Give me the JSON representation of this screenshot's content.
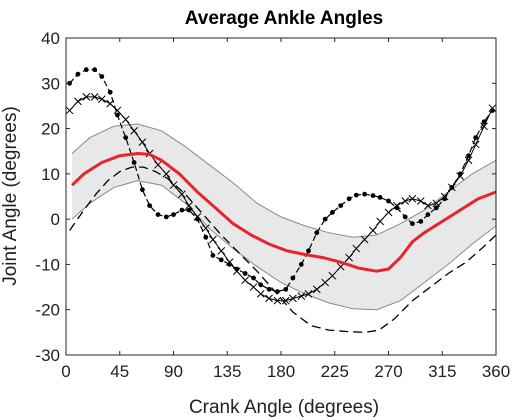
{
  "chart_data": {
    "type": "line",
    "title": "Average Ankle Angles",
    "xlabel": "Crank Angle (degrees)",
    "ylabel": "Joint Angle (degrees)",
    "xlim": [
      0,
      360
    ],
    "ylim": [
      -30,
      40
    ],
    "xticks": [
      "0",
      "45",
      "90",
      "135",
      "180",
      "225",
      "270",
      "315",
      "360"
    ],
    "yticks": [
      "40",
      "30",
      "20",
      "10",
      "0",
      "-10",
      "-20",
      "-30"
    ],
    "grid": false,
    "legend": "none",
    "band": {
      "x": [
        5,
        20,
        40,
        60,
        80,
        100,
        120,
        140,
        160,
        180,
        200,
        220,
        240,
        260,
        280,
        300,
        320,
        340,
        360
      ],
      "upper": [
        14.5,
        18,
        20.5,
        21,
        19.5,
        16,
        12,
        8,
        3.5,
        0.5,
        -1.5,
        -3,
        -4,
        -3.5,
        -1,
        2,
        6,
        10,
        13
      ],
      "lower": [
        0,
        3.5,
        7,
        8.5,
        7.5,
        3.5,
        -2,
        -6.5,
        -10.5,
        -14,
        -16.5,
        -18.5,
        -19.8,
        -20,
        -18,
        -14,
        -10,
        -5.5,
        -1.5
      ]
    },
    "series": [
      {
        "color": "#e8242c",
        "style": "thick-solid",
        "x": [
          5,
          15,
          30,
          45,
          60,
          70,
          80,
          95,
          110,
          125,
          140,
          155,
          170,
          185,
          200,
          215,
          230,
          245,
          260,
          270,
          280,
          290,
          300,
          315,
          330,
          345,
          360
        ],
        "y": [
          7.5,
          10,
          12.5,
          14,
          14.5,
          14.3,
          13,
          10,
          6,
          2.5,
          -1,
          -3.5,
          -5.5,
          -7,
          -7.8,
          -8.5,
          -9.5,
          -10.8,
          -11.5,
          -11,
          -8.5,
          -5,
          -3,
          -0.5,
          2,
          4.5,
          6
        ]
      },
      {
        "color": "#000000",
        "style": "dots",
        "x": [
          3,
          10,
          17,
          24,
          30,
          37,
          43,
          50,
          57,
          64,
          70,
          77,
          84,
          90,
          97,
          103,
          110,
          117,
          123,
          130,
          137,
          143,
          150,
          157,
          163,
          170,
          177,
          184,
          190,
          197,
          203,
          210,
          217,
          223,
          230,
          237,
          243,
          250,
          257,
          263,
          270,
          277,
          284,
          290,
          297,
          303,
          310,
          317,
          323,
          330,
          337,
          343,
          350,
          357
        ],
        "y": [
          30,
          32,
          33,
          33,
          31.5,
          28,
          23,
          18,
          12.5,
          6.5,
          3,
          1,
          0.5,
          1,
          2,
          2,
          0,
          -4,
          -8,
          -9,
          -10,
          -11,
          -12,
          -13,
          -14.5,
          -15.5,
          -16,
          -15.5,
          -13,
          -10,
          -7,
          -3,
          0,
          1.5,
          3,
          4.5,
          5.3,
          5.5,
          5.2,
          4.8,
          4,
          2.5,
          0.5,
          -1,
          -0.5,
          1,
          2.5,
          4.5,
          7,
          10,
          14,
          18,
          21.5,
          24
        ]
      },
      {
        "color": "#000000",
        "style": "cross",
        "x": [
          3,
          10,
          17,
          24,
          30,
          37,
          43,
          50,
          57,
          64,
          70,
          77,
          84,
          90,
          97,
          103,
          110,
          117,
          123,
          130,
          137,
          143,
          150,
          157,
          163,
          170,
          177,
          184,
          190,
          197,
          203,
          210,
          217,
          223,
          230,
          237,
          243,
          250,
          257,
          263,
          270,
          277,
          284,
          290,
          297,
          303,
          310,
          317,
          323,
          330,
          337,
          343,
          350,
          357
        ],
        "y": [
          24,
          26,
          27,
          27,
          26.5,
          25.5,
          24,
          22,
          19.5,
          17,
          14.5,
          12,
          10,
          7.5,
          5.5,
          3,
          0.5,
          -2,
          -4.5,
          -7,
          -9.5,
          -11.5,
          -13.5,
          -15,
          -16.5,
          -17.5,
          -18,
          -18,
          -17.5,
          -17,
          -16.5,
          -15.5,
          -14,
          -12.5,
          -10.5,
          -8.5,
          -6.5,
          -4.5,
          -2.5,
          -0.5,
          1.5,
          3,
          4,
          4.5,
          4,
          3,
          3.5,
          5,
          7,
          9.5,
          13,
          16.5,
          20.5,
          24.5
        ]
      },
      {
        "color": "#000000",
        "style": "dashed",
        "x": [
          3,
          15,
          25,
          35,
          45,
          55,
          65,
          75,
          85,
          100,
          115,
          130,
          145,
          160,
          175,
          190,
          205,
          220,
          235,
          250,
          262,
          275,
          290,
          305,
          320,
          335,
          350,
          360
        ],
        "y": [
          -2.5,
          2,
          5.5,
          8.5,
          10.5,
          11.5,
          11.5,
          10.5,
          9,
          5.5,
          1,
          -3.5,
          -7.5,
          -11.5,
          -16,
          -20.5,
          -23.5,
          -24.5,
          -24.8,
          -25,
          -24.5,
          -22,
          -18,
          -15,
          -12,
          -9.5,
          -6,
          -3.5
        ]
      }
    ]
  }
}
